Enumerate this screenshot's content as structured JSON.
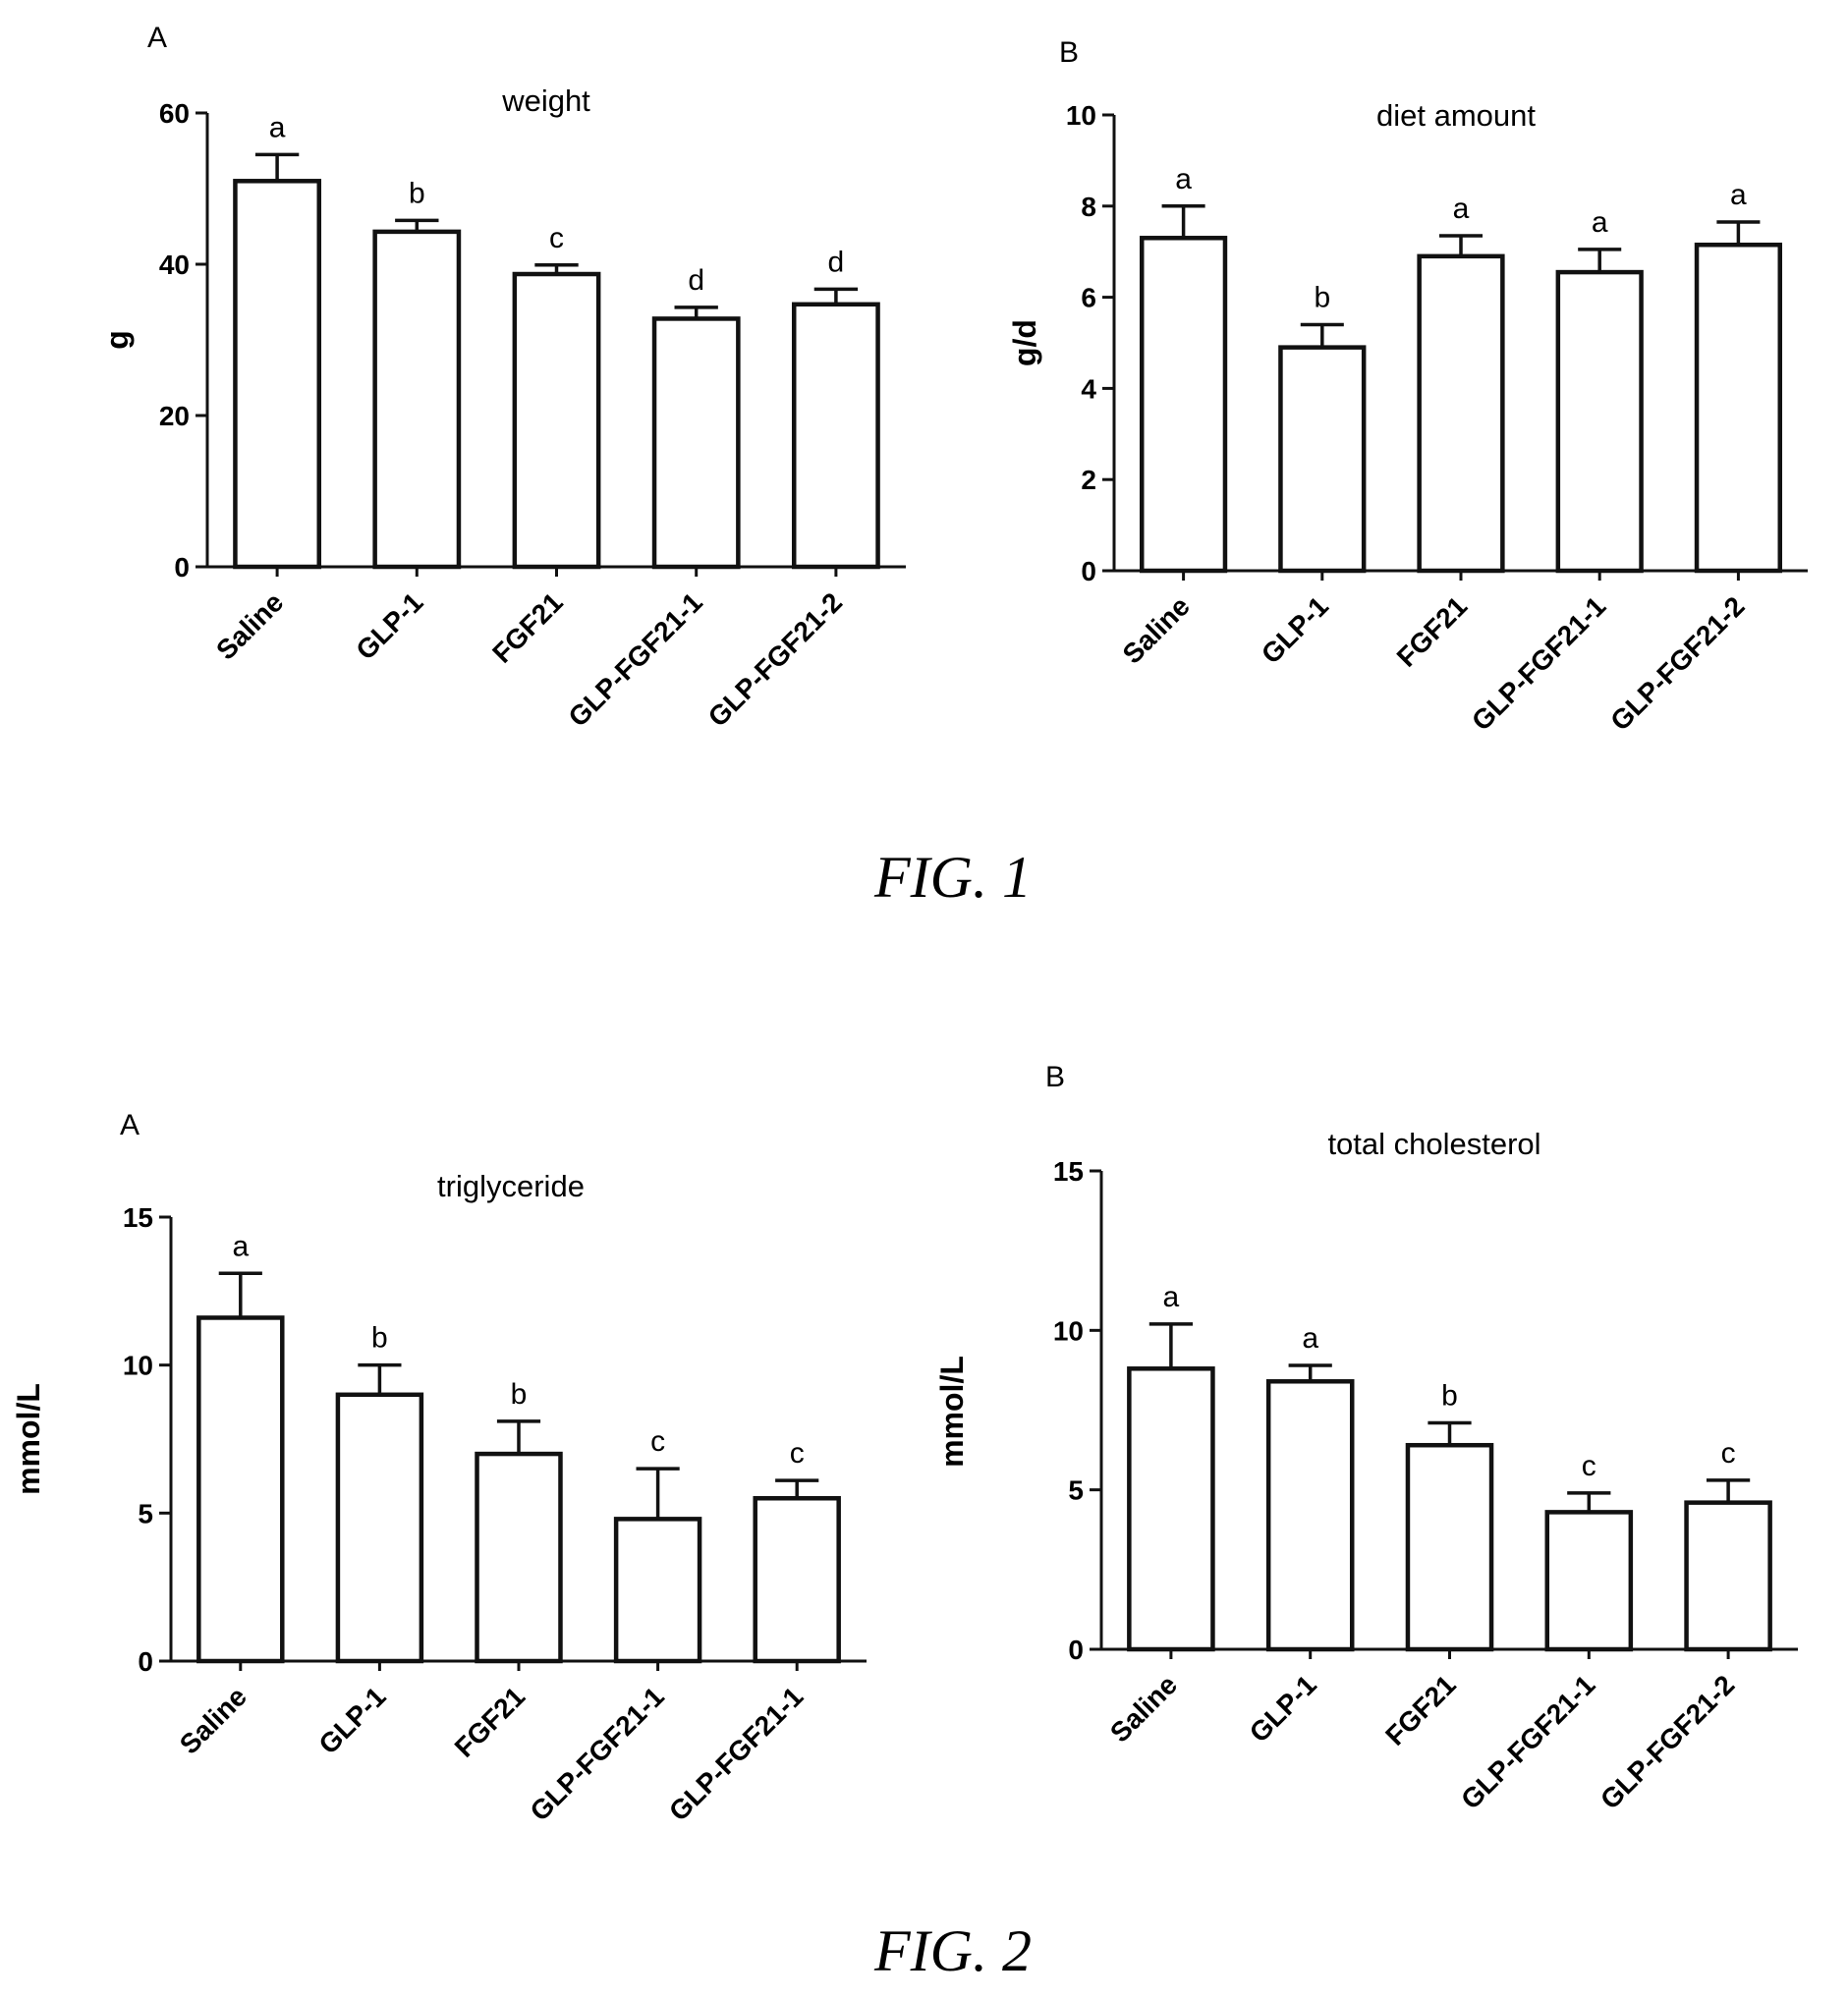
{
  "figures": [
    {
      "caption": "FIG. 1"
    },
    {
      "caption": "FIG. 2"
    }
  ],
  "chart_data": [
    {
      "type": "bar",
      "panel_label": "A",
      "title": "weight",
      "xlabel": "",
      "ylabel": "g",
      "ylim": [
        0,
        60
      ],
      "yticks": [
        0,
        20,
        40,
        60
      ],
      "categories": [
        "Saline",
        "GLP-1",
        "FGF21",
        "GLP-FGF21-1",
        "GLP-FGF21-2"
      ],
      "values": [
        51,
        44.3,
        38.7,
        32.8,
        34.7
      ],
      "errors": [
        3.5,
        1.5,
        1.2,
        1.5,
        2.0
      ],
      "significance": [
        "a",
        "b",
        "c",
        "d",
        "d"
      ],
      "grid": false
    },
    {
      "type": "bar",
      "panel_label": "B",
      "title": "diet amount",
      "xlabel": "",
      "ylabel": "g/d",
      "ylim": [
        0,
        10
      ],
      "yticks": [
        0,
        2,
        4,
        6,
        8,
        10
      ],
      "categories": [
        "Saline",
        "GLP-1",
        "FGF21",
        "GLP-FGF21-1",
        "GLP-FGF21-2"
      ],
      "values": [
        7.3,
        4.9,
        6.9,
        6.55,
        7.15
      ],
      "errors": [
        0.7,
        0.5,
        0.45,
        0.5,
        0.5
      ],
      "significance": [
        "a",
        "b",
        "a",
        "a",
        "a"
      ],
      "grid": false
    },
    {
      "type": "bar",
      "panel_label": "A",
      "title": "triglyceride",
      "xlabel": "",
      "ylabel": "mmol/L",
      "ylim": [
        0,
        15
      ],
      "yticks": [
        0,
        5,
        10,
        15
      ],
      "categories": [
        "Saline",
        "GLP-1",
        "FGF21",
        "GLP-FGF21-1",
        "GLP-FGF21-1"
      ],
      "values": [
        11.6,
        9.0,
        7.0,
        4.8,
        5.5
      ],
      "errors": [
        1.5,
        1.0,
        1.1,
        1.7,
        0.6
      ],
      "significance": [
        "a",
        "b",
        "b",
        "c",
        "c"
      ],
      "grid": false
    },
    {
      "type": "bar",
      "panel_label": "B",
      "title": "total cholesterol",
      "xlabel": "",
      "ylabel": "mmol/L",
      "ylim": [
        0,
        15
      ],
      "yticks": [
        0,
        5,
        10,
        15
      ],
      "categories": [
        "Saline",
        "GLP-1",
        "FGF21",
        "GLP-FGF21-1",
        "GLP-FGF21-2"
      ],
      "values": [
        8.8,
        8.4,
        6.4,
        4.3,
        4.6
      ],
      "errors": [
        1.4,
        0.5,
        0.7,
        0.6,
        0.7
      ],
      "significance": [
        "a",
        "a",
        "b",
        "c",
        "c"
      ],
      "grid": false
    }
  ]
}
